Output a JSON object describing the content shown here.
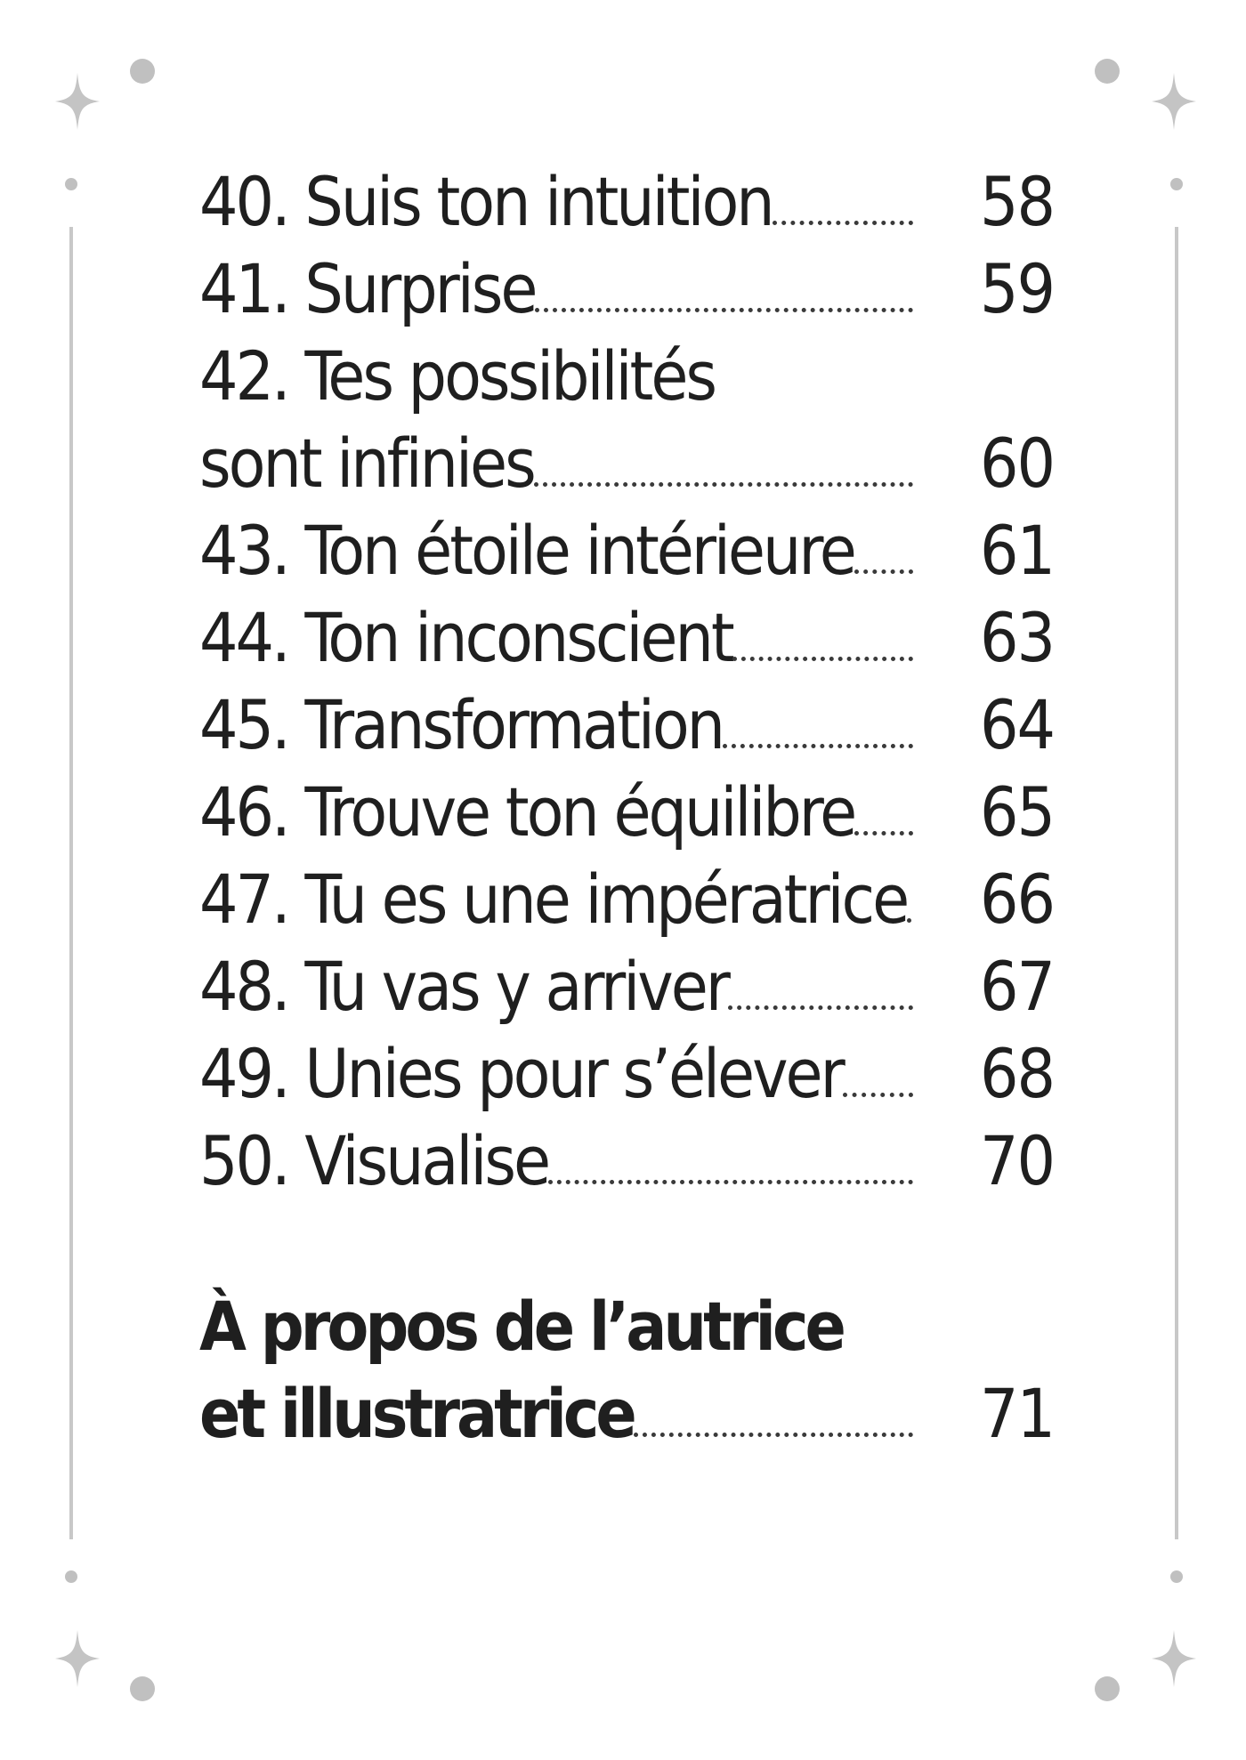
{
  "toc": {
    "entries": [
      {
        "title": "40. Suis ton intuition",
        "page": "58"
      },
      {
        "title": "41. Surprise",
        "page": "59"
      },
      {
        "title": "42. Tes possibilités",
        "page": ""
      },
      {
        "title": "sont infinies",
        "page": "60"
      },
      {
        "title": "43. Ton étoile intérieure",
        "page": "61"
      },
      {
        "title": "44. Ton inconscient",
        "page": "63"
      },
      {
        "title": "45. Transformation",
        "page": "64"
      },
      {
        "title": "46. Trouve ton équilibre",
        "page": "65"
      },
      {
        "title": "47. Tu es une impératrice",
        "page": "66"
      },
      {
        "title": "48. Tu vas y arriver",
        "page": "67"
      },
      {
        "title": "49. Unies pour s’élever",
        "page": "68"
      },
      {
        "title": "50. Visualise",
        "page": "70"
      }
    ],
    "about": [
      {
        "title": "À propos de l’autrice",
        "page": ""
      },
      {
        "title": "et illustratrice",
        "page": "71"
      }
    ]
  },
  "colors": {
    "text": "#1f1f1f",
    "frame": "#c0c0c0"
  },
  "decorations": {
    "star_icon": "sparkle-icon",
    "dot_icon": "dot-icon"
  }
}
